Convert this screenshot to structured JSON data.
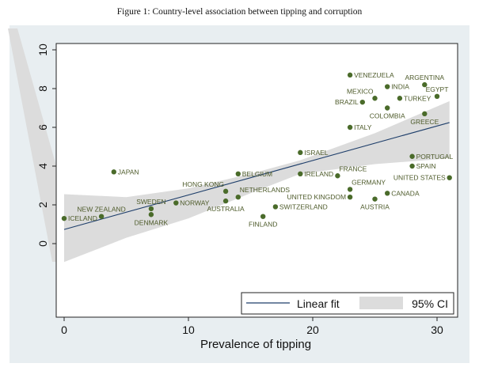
{
  "caption": "Figure 1: Country-level association between tipping and corruption",
  "chart_data": {
    "type": "scatter",
    "title": "",
    "xlabel": "Prevalence of tipping",
    "ylabel": "",
    "xlim": [
      -1,
      32
    ],
    "ylim": [
      -4.5,
      10.5
    ],
    "xticks": [
      0,
      10,
      20,
      30
    ],
    "yticks": [
      0,
      2,
      4,
      6,
      8,
      10
    ],
    "xtick_labels": [
      "0",
      "10",
      "20",
      "30"
    ],
    "ytick_labels": [
      "0",
      "2",
      "4",
      "6",
      "8",
      "10"
    ],
    "grid": false,
    "legend": {
      "placement": "bottom-right",
      "entries": [
        {
          "label": "Linear fit",
          "kind": "line",
          "color": "#1f3f6b"
        },
        {
          "label": "95% CI",
          "kind": "area",
          "color": "#dcdcdc"
        }
      ]
    },
    "colors": {
      "point": "#4a6b2a",
      "label": "#4e5b2b",
      "fit_line": "#1f3f6b",
      "ci_band": "#dcdcdc",
      "outer_background": "#e8eef1",
      "plot_background": "#ffffff"
    },
    "fit": {
      "intercept": 0.73,
      "slope": 0.178
    },
    "ci_band": {
      "x": [
        0,
        5,
        10,
        15,
        19,
        25,
        31
      ],
      "lower": [
        -0.95,
        0.3,
        1.3,
        2.6,
        3.6,
        4.1,
        4.4
      ],
      "upper": [
        2.55,
        2.4,
        2.85,
        3.6,
        4.3,
        5.7,
        7.35
      ]
    },
    "points": [
      {
        "label": "ICELAND",
        "x": 0,
        "y": 1.3,
        "pos": "right"
      },
      {
        "label": "NEW ZEALAND",
        "x": 3,
        "y": 1.4,
        "pos": "above"
      },
      {
        "label": "SWEDEN",
        "x": 7,
        "y": 1.8,
        "pos": "above"
      },
      {
        "label": "DENMARK",
        "x": 7,
        "y": 1.5,
        "pos": "below"
      },
      {
        "label": "NORWAY",
        "x": 9,
        "y": 2.1,
        "pos": "right"
      },
      {
        "label": "JAPAN",
        "x": 4,
        "y": 3.7,
        "pos": "right"
      },
      {
        "label": "HONG KONG",
        "x": 13,
        "y": 2.7,
        "pos": "above-left"
      },
      {
        "label": "AUSTRALIA",
        "x": 13,
        "y": 2.2,
        "pos": "below"
      },
      {
        "label": "NETHERLANDS",
        "x": 14,
        "y": 2.4,
        "pos": "above-right"
      },
      {
        "label": "BELGIUM",
        "x": 14,
        "y": 3.6,
        "pos": "right"
      },
      {
        "label": "FINLAND",
        "x": 16,
        "y": 1.4,
        "pos": "below"
      },
      {
        "label": "SWITZERLAND",
        "x": 17,
        "y": 1.9,
        "pos": "right"
      },
      {
        "label": "ISRAEL",
        "x": 19,
        "y": 4.7,
        "pos": "right"
      },
      {
        "label": "IRELAND",
        "x": 19,
        "y": 3.6,
        "pos": "right"
      },
      {
        "label": "FRANCE",
        "x": 22,
        "y": 3.5,
        "pos": "above-right"
      },
      {
        "label": "GERMANY",
        "x": 23,
        "y": 2.8,
        "pos": "above-right"
      },
      {
        "label": "UNITED KINGDOM",
        "x": 23,
        "y": 2.4,
        "pos": "left"
      },
      {
        "label": "AUSTRIA",
        "x": 25,
        "y": 2.3,
        "pos": "below"
      },
      {
        "label": "CANADA",
        "x": 26,
        "y": 2.6,
        "pos": "right"
      },
      {
        "label": "ITALY",
        "x": 23,
        "y": 6.0,
        "pos": "right"
      },
      {
        "label": "VENEZUELA",
        "x": 23,
        "y": 8.7,
        "pos": "right"
      },
      {
        "label": "INDIA",
        "x": 26,
        "y": 8.1,
        "pos": "right"
      },
      {
        "label": "MEXICO",
        "x": 25,
        "y": 7.5,
        "pos": "above-left"
      },
      {
        "label": "BRAZIL",
        "x": 24,
        "y": 7.3,
        "pos": "left"
      },
      {
        "label": "COLOMBIA",
        "x": 26,
        "y": 7.0,
        "pos": "below"
      },
      {
        "label": "TURKEY",
        "x": 27,
        "y": 7.5,
        "pos": "right"
      },
      {
        "label": "ARGENTINA",
        "x": 29,
        "y": 8.2,
        "pos": "above"
      },
      {
        "label": "EGYPT",
        "x": 30,
        "y": 7.6,
        "pos": "above"
      },
      {
        "label": "GREECE",
        "x": 29,
        "y": 6.7,
        "pos": "below"
      },
      {
        "label": "PORTUGAL",
        "x": 28,
        "y": 4.5,
        "pos": "right"
      },
      {
        "label": "SPAIN",
        "x": 28,
        "y": 4.0,
        "pos": "right"
      },
      {
        "label": "UNITED STATES",
        "x": 31,
        "y": 3.4,
        "pos": "left"
      }
    ]
  }
}
